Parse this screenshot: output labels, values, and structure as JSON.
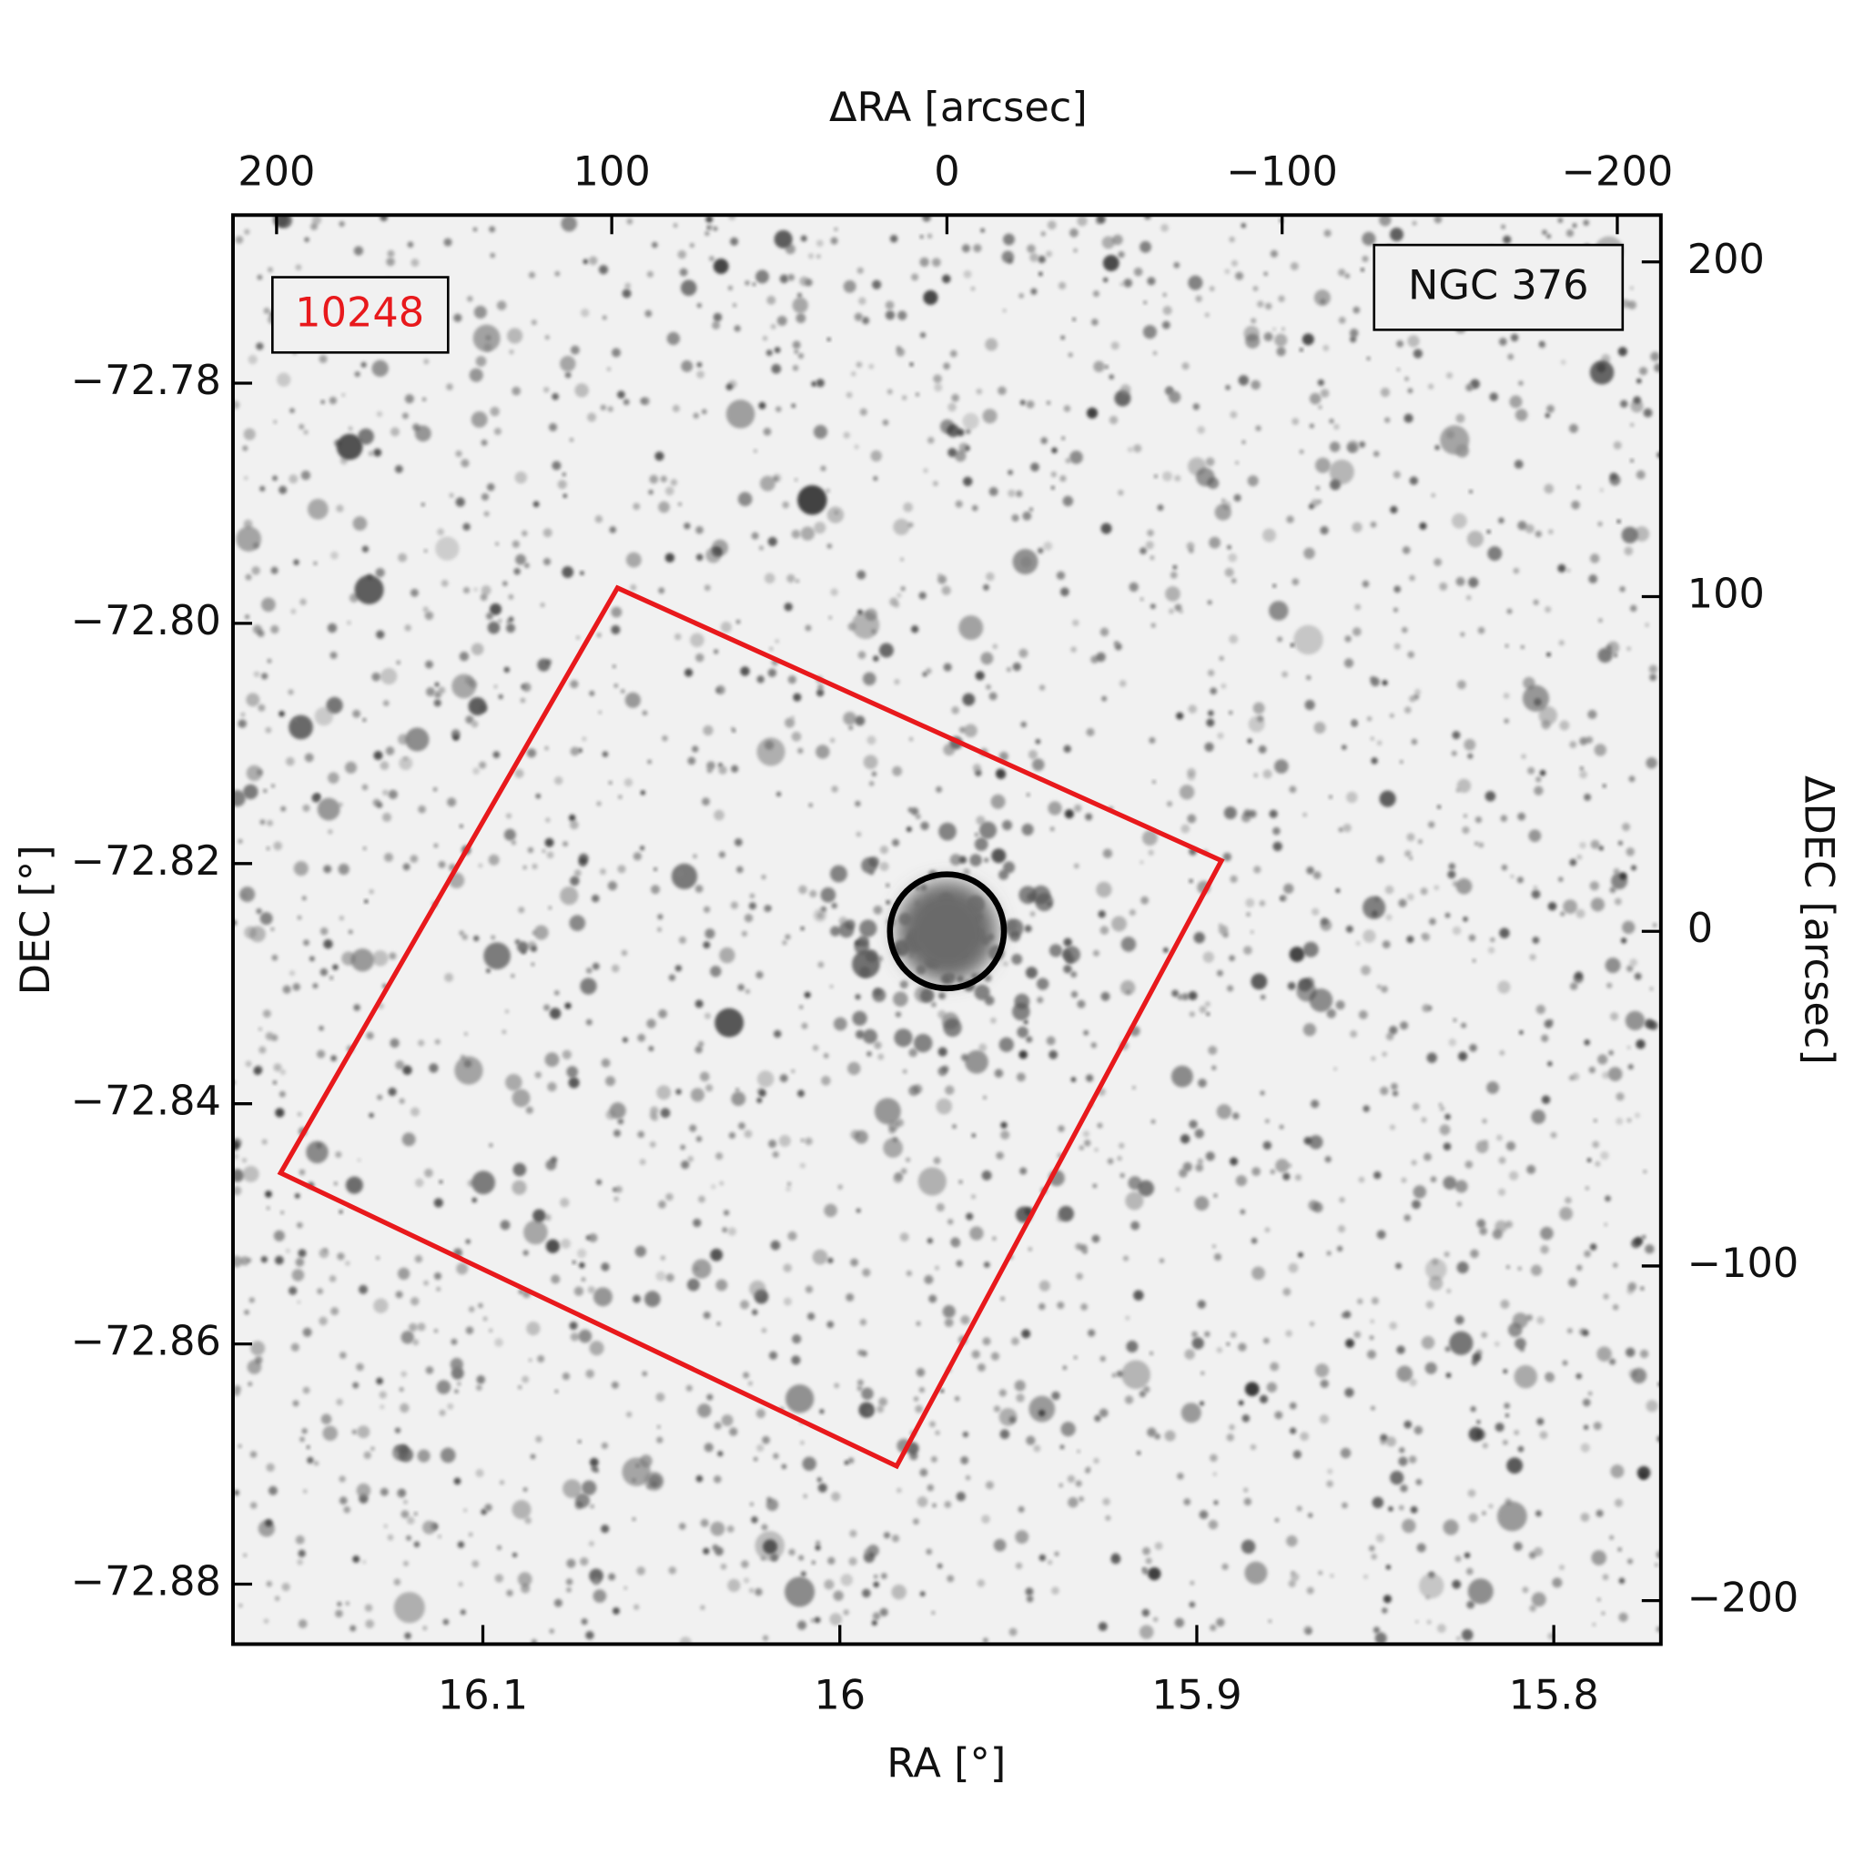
{
  "chart_data": {
    "type": "sky_image",
    "xlabel": "RA [°]",
    "ylabel": "DEC [°]",
    "x2label": "ΔRA [arcsec]",
    "y2label": "ΔDEC [arcsec]",
    "xlim": [
      16.17,
      15.77
    ],
    "xticks": [
      16.1,
      16.0,
      15.9,
      15.8
    ],
    "ylim": [
      -72.885,
      -72.766
    ],
    "yticks": [
      {
        "value": -72.78,
        "label": "−72.78"
      },
      {
        "value": -72.8,
        "label": "−72.80"
      },
      {
        "value": -72.82,
        "label": "−72.82"
      },
      {
        "value": -72.84,
        "label": "−72.84"
      },
      {
        "value": -72.86,
        "label": "−72.86"
      },
      {
        "value": -72.88,
        "label": "−72.88"
      }
    ],
    "x2lim": [
      213,
      -213
    ],
    "x2ticks": [
      200,
      100,
      0,
      {
        "value": -100,
        "label": "−100"
      },
      {
        "value": -200,
        "label": "−200"
      }
    ],
    "y2lim": [
      -213,
      214
    ],
    "y2ticks": [
      200,
      100,
      0,
      {
        "value": -100,
        "label": "−100"
      },
      {
        "value": -200,
        "label": "−200"
      }
    ],
    "footprint": {
      "color": "#e8191c",
      "dra": [
        98.3,
        -81.9,
        15.0,
        198.8
      ],
      "ddec": [
        102.6,
        21.1,
        -159.8,
        -72.2
      ]
    },
    "aperture": {
      "color": "#000000",
      "dra": 0,
      "ddec": 0,
      "radius": 17
    },
    "field_label": {
      "text": "10248",
      "color": "#e8191c"
    },
    "object_label": {
      "text": "NGC 376",
      "color": "#111111"
    }
  }
}
